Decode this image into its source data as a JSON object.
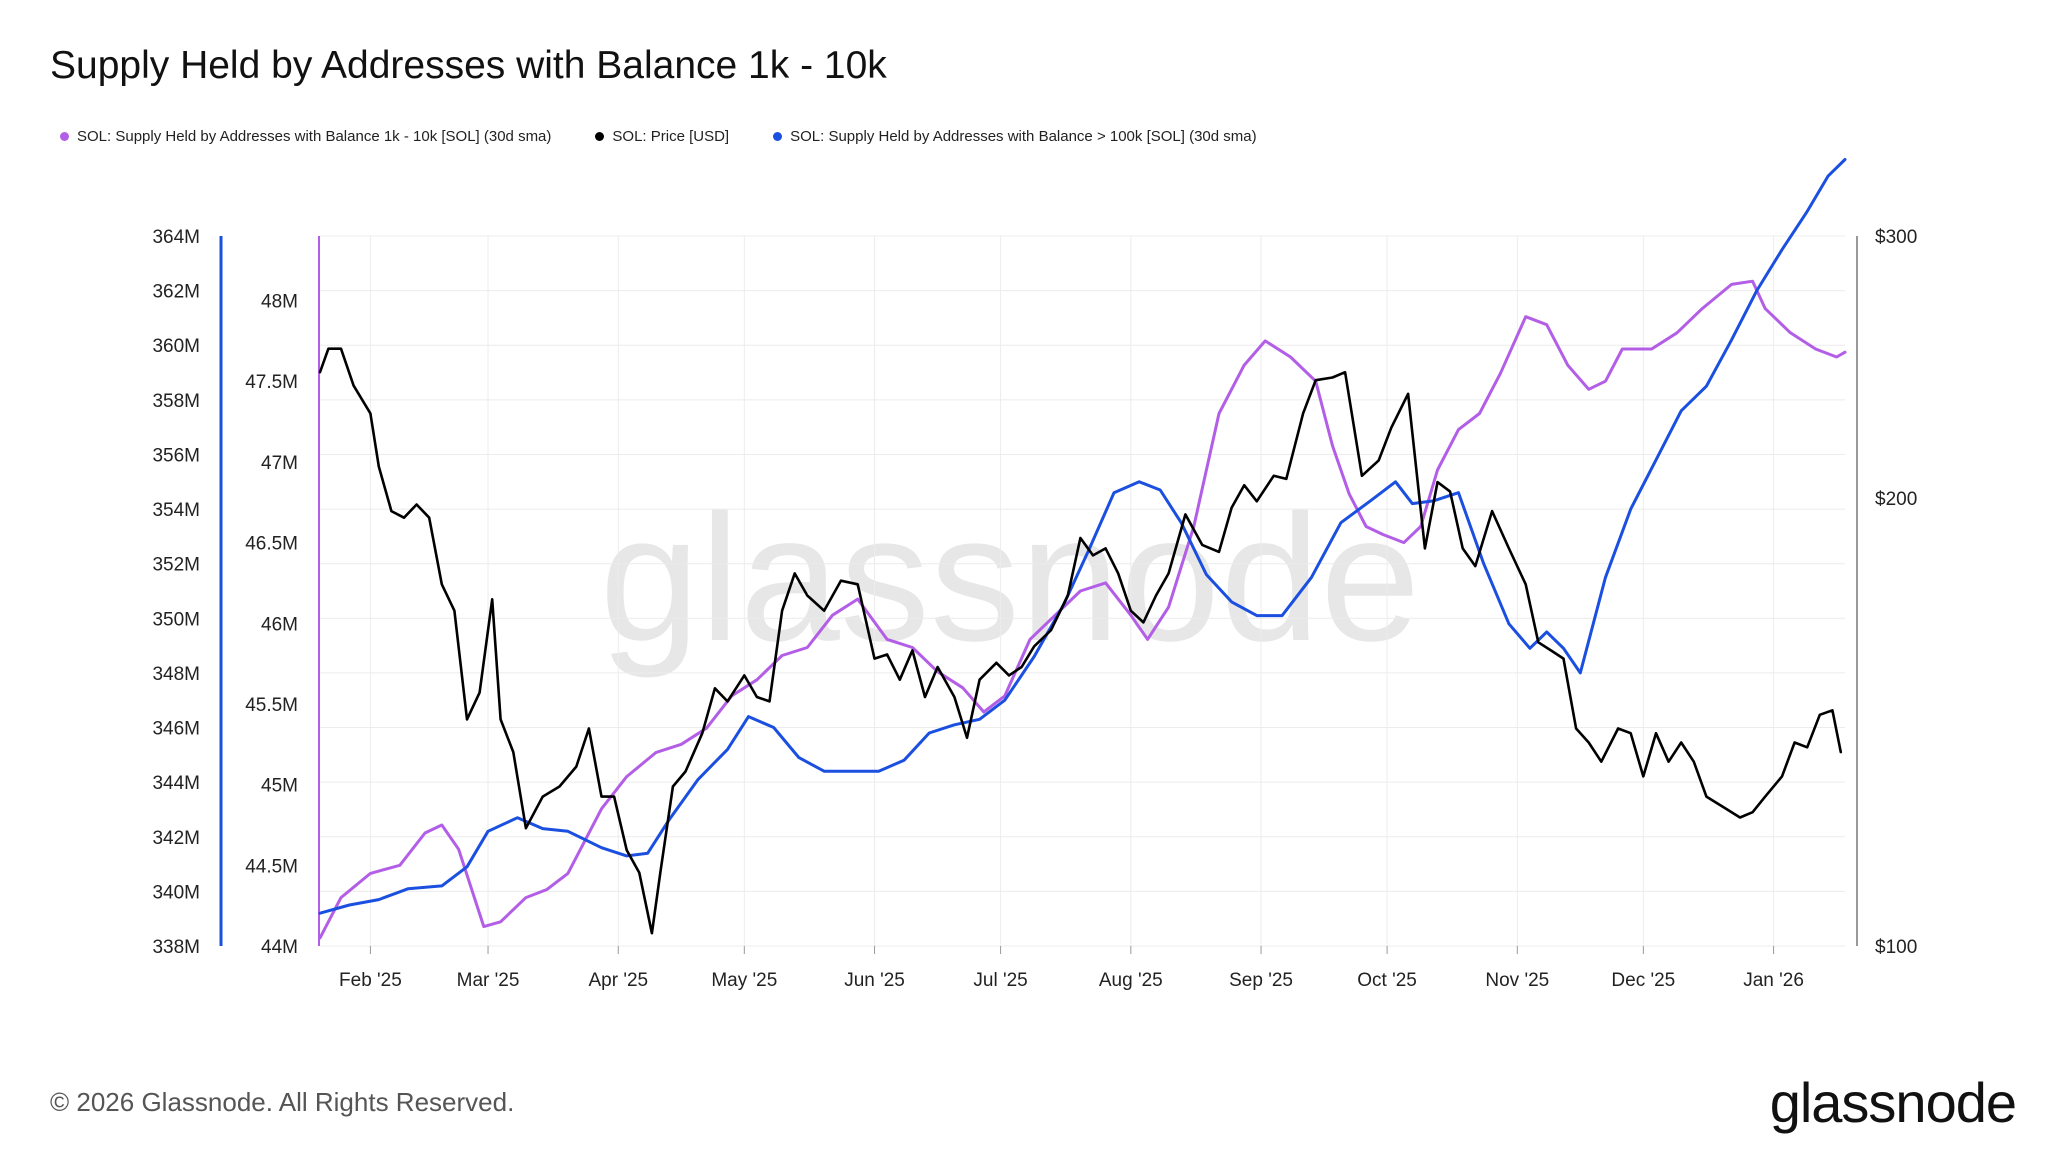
{
  "title": "Supply Held by Addresses with Balance 1k - 10k",
  "legend": [
    {
      "label": "SOL: Supply Held by Addresses with Balance 1k - 10k [SOL] (30d sma)",
      "color": "#b35ee6"
    },
    {
      "label": "SOL: Price [USD]",
      "color": "#000000"
    },
    {
      "label": "SOL: Supply Held by Addresses with Balance > 100k [SOL] (30d sma)",
      "color": "#1a4fe0"
    }
  ],
  "footer": "© 2026 Glassnode. All Rights Reserved.",
  "brand": "glassnode",
  "watermark": "glassnode",
  "chart_data": {
    "type": "line",
    "x_ticks": [
      "Feb '25",
      "Mar '25",
      "Apr '25",
      "May '25",
      "Jun '25",
      "Jul '25",
      "Aug '25",
      "Sep '25",
      "Oct '25",
      "Nov '25",
      "Dec '25",
      "Jan '26"
    ],
    "x_tick_dates": [
      "2025-02-01",
      "2025-03-01",
      "2025-04-01",
      "2025-05-01",
      "2025-06-01",
      "2025-07-01",
      "2025-08-01",
      "2025-09-01",
      "2025-10-01",
      "2025-11-01",
      "2025-12-01",
      "2026-01-01"
    ],
    "x_range": [
      "2025-01-20",
      "2026-01-18"
    ],
    "left_outer_axis": {
      "ticks": [
        "364M",
        "362M",
        "360M",
        "358M",
        "356M",
        "354M",
        "352M",
        "350M",
        "348M",
        "346M",
        "344M",
        "342M",
        "340M",
        "338M"
      ],
      "range": [
        338,
        364
      ],
      "color": "#1a4fe0"
    },
    "left_inner_axis": {
      "ticks": [
        "48M",
        "47.5M",
        "47M",
        "46.5M",
        "46M",
        "45.5M",
        "45M",
        "44.5M",
        "44M"
      ],
      "range": [
        44,
        48.4
      ],
      "color": "#b35ee6"
    },
    "right_axis": {
      "ticks": [
        "$300",
        "$200",
        "$100"
      ],
      "range": [
        100,
        300
      ],
      "scale": "log"
    },
    "grid": true,
    "series": [
      {
        "name": "SOL: Supply Held by Addresses with Balance 1k - 10k [SOL] (30d sma)",
        "axis": "left_inner",
        "color": "#b35ee6",
        "points": [
          [
            "2025-01-20",
            44.05
          ],
          [
            "2025-01-25",
            44.3
          ],
          [
            "2025-02-01",
            44.45
          ],
          [
            "2025-02-08",
            44.5
          ],
          [
            "2025-02-14",
            44.7
          ],
          [
            "2025-02-18",
            44.75
          ],
          [
            "2025-02-22",
            44.6
          ],
          [
            "2025-02-28",
            44.12
          ],
          [
            "2025-03-04",
            44.15
          ],
          [
            "2025-03-10",
            44.3
          ],
          [
            "2025-03-15",
            44.35
          ],
          [
            "2025-03-20",
            44.45
          ],
          [
            "2025-03-28",
            44.85
          ],
          [
            "2025-04-03",
            45.05
          ],
          [
            "2025-04-10",
            45.2
          ],
          [
            "2025-04-16",
            45.25
          ],
          [
            "2025-04-22",
            45.35
          ],
          [
            "2025-04-28",
            45.55
          ],
          [
            "2025-05-04",
            45.65
          ],
          [
            "2025-05-10",
            45.8
          ],
          [
            "2025-05-16",
            45.85
          ],
          [
            "2025-05-22",
            46.05
          ],
          [
            "2025-05-28",
            46.15
          ],
          [
            "2025-06-04",
            45.9
          ],
          [
            "2025-06-10",
            45.85
          ],
          [
            "2025-06-16",
            45.7
          ],
          [
            "2025-06-22",
            45.6
          ],
          [
            "2025-06-27",
            45.45
          ],
          [
            "2025-07-02",
            45.55
          ],
          [
            "2025-07-08",
            45.9
          ],
          [
            "2025-07-14",
            46.05
          ],
          [
            "2025-07-20",
            46.2
          ],
          [
            "2025-07-26",
            46.25
          ],
          [
            "2025-08-01",
            46.05
          ],
          [
            "2025-08-05",
            45.9
          ],
          [
            "2025-08-10",
            46.1
          ],
          [
            "2025-08-16",
            46.6
          ],
          [
            "2025-08-22",
            47.3
          ],
          [
            "2025-08-28",
            47.6
          ],
          [
            "2025-09-02",
            47.75
          ],
          [
            "2025-09-08",
            47.65
          ],
          [
            "2025-09-14",
            47.5
          ],
          [
            "2025-09-18",
            47.1
          ],
          [
            "2025-09-22",
            46.8
          ],
          [
            "2025-09-26",
            46.6
          ],
          [
            "2025-09-30",
            46.55
          ],
          [
            "2025-10-05",
            46.5
          ],
          [
            "2025-10-09",
            46.6
          ],
          [
            "2025-10-13",
            46.95
          ],
          [
            "2025-10-18",
            47.2
          ],
          [
            "2025-10-23",
            47.3
          ],
          [
            "2025-10-28",
            47.55
          ],
          [
            "2025-11-03",
            47.9
          ],
          [
            "2025-11-08",
            47.85
          ],
          [
            "2025-11-13",
            47.6
          ],
          [
            "2025-11-18",
            47.45
          ],
          [
            "2025-11-22",
            47.5
          ],
          [
            "2025-11-26",
            47.7
          ],
          [
            "2025-12-03",
            47.7
          ],
          [
            "2025-12-09",
            47.8
          ],
          [
            "2025-12-15",
            47.95
          ],
          [
            "2025-12-22",
            48.1
          ],
          [
            "2025-12-27",
            48.12
          ],
          [
            "2025-12-30",
            47.95
          ],
          [
            "2026-01-05",
            47.8
          ],
          [
            "2026-01-11",
            47.7
          ],
          [
            "2026-01-16",
            47.65
          ],
          [
            "2026-01-18",
            47.68
          ]
        ]
      },
      {
        "name": "SOL: Price [USD]",
        "axis": "right",
        "color": "#000000",
        "points": [
          [
            "2025-01-20",
            243
          ],
          [
            "2025-01-22",
            252
          ],
          [
            "2025-01-25",
            252
          ],
          [
            "2025-01-28",
            238
          ],
          [
            "2025-02-01",
            228
          ],
          [
            "2025-02-03",
            210
          ],
          [
            "2025-02-06",
            196
          ],
          [
            "2025-02-09",
            194
          ],
          [
            "2025-02-12",
            198
          ],
          [
            "2025-02-15",
            194
          ],
          [
            "2025-02-18",
            175
          ],
          [
            "2025-02-21",
            168
          ],
          [
            "2025-02-24",
            142
          ],
          [
            "2025-02-27",
            148
          ],
          [
            "2025-03-02",
            171
          ],
          [
            "2025-03-04",
            142
          ],
          [
            "2025-03-07",
            135
          ],
          [
            "2025-03-10",
            120
          ],
          [
            "2025-03-14",
            126
          ],
          [
            "2025-03-18",
            128
          ],
          [
            "2025-03-22",
            132
          ],
          [
            "2025-03-25",
            140
          ],
          [
            "2025-03-28",
            126
          ],
          [
            "2025-03-31",
            126
          ],
          [
            "2025-04-03",
            116
          ],
          [
            "2025-04-06",
            112
          ],
          [
            "2025-04-09",
            102
          ],
          [
            "2025-04-11",
            112
          ],
          [
            "2025-04-14",
            128
          ],
          [
            "2025-04-17",
            131
          ],
          [
            "2025-04-21",
            139
          ],
          [
            "2025-04-24",
            149
          ],
          [
            "2025-04-27",
            146
          ],
          [
            "2025-05-01",
            152
          ],
          [
            "2025-05-04",
            147
          ],
          [
            "2025-05-07",
            146
          ],
          [
            "2025-05-10",
            168
          ],
          [
            "2025-05-13",
            178
          ],
          [
            "2025-05-16",
            172
          ],
          [
            "2025-05-20",
            168
          ],
          [
            "2025-05-24",
            176
          ],
          [
            "2025-05-28",
            175
          ],
          [
            "2025-06-01",
            156
          ],
          [
            "2025-06-04",
            157
          ],
          [
            "2025-06-07",
            151
          ],
          [
            "2025-06-10",
            158
          ],
          [
            "2025-06-13",
            147
          ],
          [
            "2025-06-16",
            154
          ],
          [
            "2025-06-20",
            147
          ],
          [
            "2025-06-23",
            138
          ],
          [
            "2025-06-26",
            151
          ],
          [
            "2025-06-30",
            155
          ],
          [
            "2025-07-03",
            152
          ],
          [
            "2025-07-06",
            154
          ],
          [
            "2025-07-09",
            159
          ],
          [
            "2025-07-13",
            163
          ],
          [
            "2025-07-17",
            172
          ],
          [
            "2025-07-20",
            188
          ],
          [
            "2025-07-23",
            183
          ],
          [
            "2025-07-26",
            185
          ],
          [
            "2025-07-29",
            178
          ],
          [
            "2025-08-01",
            168
          ],
          [
            "2025-08-04",
            165
          ],
          [
            "2025-08-07",
            172
          ],
          [
            "2025-08-10",
            178
          ],
          [
            "2025-08-14",
            195
          ],
          [
            "2025-08-18",
            186
          ],
          [
            "2025-08-22",
            184
          ],
          [
            "2025-08-25",
            197
          ],
          [
            "2025-08-28",
            204
          ],
          [
            "2025-08-31",
            199
          ],
          [
            "2025-09-04",
            207
          ],
          [
            "2025-09-07",
            206
          ],
          [
            "2025-09-11",
            228
          ],
          [
            "2025-09-14",
            240
          ],
          [
            "2025-09-18",
            241
          ],
          [
            "2025-09-21",
            243
          ],
          [
            "2025-09-25",
            207
          ],
          [
            "2025-09-29",
            212
          ],
          [
            "2025-10-02",
            223
          ],
          [
            "2025-10-06",
            235
          ],
          [
            "2025-10-10",
            185
          ],
          [
            "2025-10-13",
            205
          ],
          [
            "2025-10-16",
            202
          ],
          [
            "2025-10-19",
            185
          ],
          [
            "2025-10-22",
            180
          ],
          [
            "2025-10-26",
            196
          ],
          [
            "2025-10-30",
            185
          ],
          [
            "2025-11-03",
            175
          ],
          [
            "2025-11-06",
            160
          ],
          [
            "2025-11-09",
            158
          ],
          [
            "2025-11-12",
            156
          ],
          [
            "2025-11-15",
            140
          ],
          [
            "2025-11-18",
            137
          ],
          [
            "2025-11-21",
            133
          ],
          [
            "2025-11-25",
            140
          ],
          [
            "2025-11-28",
            139
          ],
          [
            "2025-12-01",
            130
          ],
          [
            "2025-12-04",
            139
          ],
          [
            "2025-12-07",
            133
          ],
          [
            "2025-12-10",
            137
          ],
          [
            "2025-12-13",
            133
          ],
          [
            "2025-12-16",
            126
          ],
          [
            "2025-12-20",
            124
          ],
          [
            "2025-12-24",
            122
          ],
          [
            "2025-12-27",
            123
          ],
          [
            "2025-12-30",
            126
          ],
          [
            "2026-01-03",
            130
          ],
          [
            "2026-01-06",
            137
          ],
          [
            "2026-01-09",
            136
          ],
          [
            "2026-01-12",
            143
          ],
          [
            "2026-01-15",
            144
          ],
          [
            "2026-01-17",
            135
          ]
        ]
      },
      {
        "name": "SOL: Supply Held by Addresses with Balance > 100k [SOL] (30d sma)",
        "axis": "left_outer",
        "color": "#1a4fe0",
        "points": [
          [
            "2025-01-20",
            339.2
          ],
          [
            "2025-01-27",
            339.5
          ],
          [
            "2025-02-03",
            339.7
          ],
          [
            "2025-02-10",
            340.1
          ],
          [
            "2025-02-18",
            340.2
          ],
          [
            "2025-02-24",
            340.9
          ],
          [
            "2025-03-01",
            342.2
          ],
          [
            "2025-03-08",
            342.7
          ],
          [
            "2025-03-14",
            342.3
          ],
          [
            "2025-03-20",
            342.2
          ],
          [
            "2025-03-28",
            341.6
          ],
          [
            "2025-04-03",
            341.3
          ],
          [
            "2025-04-08",
            341.4
          ],
          [
            "2025-04-13",
            342.6
          ],
          [
            "2025-04-20",
            344.1
          ],
          [
            "2025-04-27",
            345.2
          ],
          [
            "2025-05-02",
            346.4
          ],
          [
            "2025-05-08",
            346.0
          ],
          [
            "2025-05-14",
            344.9
          ],
          [
            "2025-05-20",
            344.4
          ],
          [
            "2025-05-26",
            344.4
          ],
          [
            "2025-06-02",
            344.4
          ],
          [
            "2025-06-08",
            344.8
          ],
          [
            "2025-06-14",
            345.8
          ],
          [
            "2025-06-20",
            346.1
          ],
          [
            "2025-06-26",
            346.3
          ],
          [
            "2025-07-02",
            347.0
          ],
          [
            "2025-07-09",
            348.6
          ],
          [
            "2025-07-16",
            350.5
          ],
          [
            "2025-07-22",
            352.5
          ],
          [
            "2025-07-28",
            354.6
          ],
          [
            "2025-08-03",
            355.0
          ],
          [
            "2025-08-08",
            354.7
          ],
          [
            "2025-08-13",
            353.5
          ],
          [
            "2025-08-19",
            351.6
          ],
          [
            "2025-08-25",
            350.6
          ],
          [
            "2025-08-31",
            350.1
          ],
          [
            "2025-09-06",
            350.1
          ],
          [
            "2025-09-13",
            351.5
          ],
          [
            "2025-09-20",
            353.5
          ],
          [
            "2025-09-27",
            354.3
          ],
          [
            "2025-10-03",
            355.0
          ],
          [
            "2025-10-07",
            354.2
          ],
          [
            "2025-10-12",
            354.3
          ],
          [
            "2025-10-18",
            354.6
          ],
          [
            "2025-10-24",
            352.0
          ],
          [
            "2025-10-30",
            349.8
          ],
          [
            "2025-11-04",
            348.9
          ],
          [
            "2025-11-08",
            349.5
          ],
          [
            "2025-11-12",
            348.9
          ],
          [
            "2025-11-16",
            348.0
          ],
          [
            "2025-11-22",
            351.5
          ],
          [
            "2025-11-28",
            354.0
          ],
          [
            "2025-12-04",
            355.8
          ],
          [
            "2025-12-10",
            357.6
          ],
          [
            "2025-12-16",
            358.5
          ],
          [
            "2025-12-22",
            360.2
          ],
          [
            "2025-12-28",
            362.0
          ],
          [
            "2026-01-03",
            363.5
          ],
          [
            "2026-01-09",
            364.9
          ],
          [
            "2026-01-14",
            366.2
          ],
          [
            "2026-01-18",
            366.8
          ]
        ]
      }
    ]
  }
}
